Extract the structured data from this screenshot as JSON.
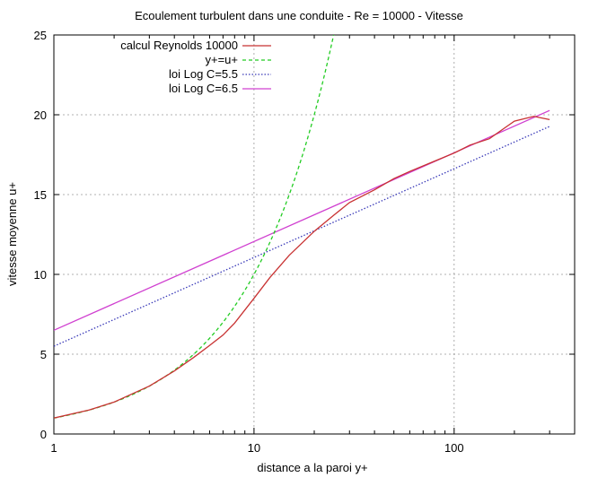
{
  "chart_data": {
    "type": "line",
    "title": "Ecoulement turbulent dans une conduite  - Re = 10000 - Vitesse",
    "xlabel": "distance a la paroi y+",
    "ylabel": "vitesse moyenne u+",
    "xscale": "log",
    "xlim": [
      1,
      400
    ],
    "ylim": [
      0,
      25
    ],
    "x_ticks": [
      1,
      10,
      100
    ],
    "x_tick_labels": [
      "1",
      "10",
      "100"
    ],
    "y_ticks": [
      0,
      5,
      10,
      15,
      20,
      25
    ],
    "y_tick_labels": [
      "0",
      "5",
      "10",
      "15",
      "20",
      "25"
    ],
    "grid": true,
    "legend_position": "top-left",
    "series": [
      {
        "name": "calcul Reynolds 10000",
        "color": "#c83232",
        "dash": "solid",
        "points": [
          [
            1,
            1.0
          ],
          [
            1.5,
            1.5
          ],
          [
            2,
            2.0
          ],
          [
            3,
            3.0
          ],
          [
            4,
            3.95
          ],
          [
            5,
            4.8
          ],
          [
            6,
            5.55
          ],
          [
            7,
            6.2
          ],
          [
            8,
            6.95
          ],
          [
            10,
            8.5
          ],
          [
            12,
            9.8
          ],
          [
            15,
            11.2
          ],
          [
            20,
            12.7
          ],
          [
            25,
            13.7
          ],
          [
            30,
            14.5
          ],
          [
            40,
            15.3
          ],
          [
            50,
            16.0
          ],
          [
            60,
            16.45
          ],
          [
            80,
            17.1
          ],
          [
            100,
            17.6
          ],
          [
            120,
            18.1
          ],
          [
            150,
            18.5
          ],
          [
            180,
            19.2
          ],
          [
            200,
            19.6
          ],
          [
            250,
            19.9
          ],
          [
            300,
            19.7
          ]
        ]
      },
      {
        "name": "y+=u+",
        "color": "#22cc22",
        "dash": "dashed",
        "points": [
          [
            1,
            1
          ],
          [
            2,
            2
          ],
          [
            3,
            3
          ],
          [
            5,
            5
          ],
          [
            7,
            7
          ],
          [
            10,
            10
          ],
          [
            13,
            13
          ],
          [
            16,
            16
          ],
          [
            20,
            20
          ],
          [
            23,
            23
          ],
          [
            25,
            25
          ]
        ]
      },
      {
        "name": "loi Log C=5.5",
        "color": "#3a3ab8",
        "dash": "dotted",
        "points": [
          [
            1,
            5.5
          ],
          [
            300,
            19.27
          ]
        ]
      },
      {
        "name": "loi Log C=6.5",
        "color": "#d040d0",
        "dash": "solid",
        "points": [
          [
            1,
            6.5
          ],
          [
            300,
            20.27
          ]
        ]
      }
    ]
  }
}
